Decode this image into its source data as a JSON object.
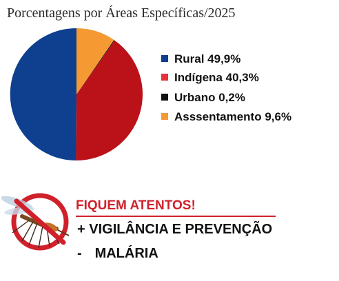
{
  "chart_data": {
    "type": "pie",
    "title": "Porcentagens por Áreas Específicas/2025",
    "slices": [
      {
        "label": "Rural 49,9%",
        "value": 49.9,
        "color": "#0f3f8f"
      },
      {
        "label": "Indígena 40,3%",
        "value": 40.3,
        "color": "#bb1118"
      },
      {
        "label": "Urbano 0,2%",
        "value": 0.2,
        "color": "#111111"
      },
      {
        "label": "Asssentamento 9,6%",
        "value": 9.6,
        "color": "#f59a32"
      }
    ],
    "legend_position": "right",
    "legend_colors": [
      "#0f3f8f",
      "#e8313a",
      "#111111",
      "#f59a32"
    ]
  },
  "alert": {
    "title": "FIQUEM ATENTOS!",
    "line1": "+ VIGILÂNCIA E PREVENÇÃO",
    "line2_prefix": "-",
    "line2": "MALÁRIA",
    "icon": "no-mosquito-icon",
    "accent_color": "#d0212b"
  }
}
